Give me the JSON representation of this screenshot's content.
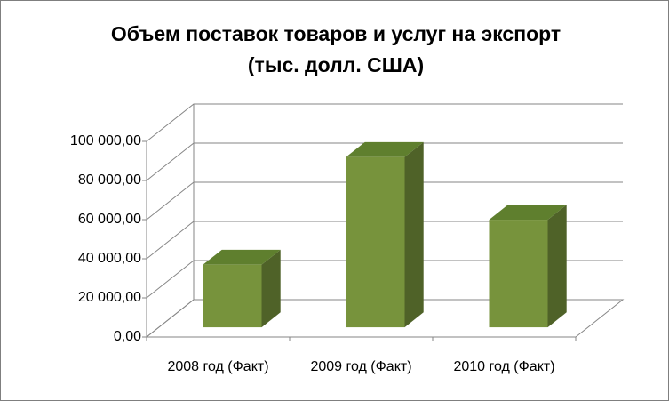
{
  "chart_data": {
    "type": "bar3d",
    "title": [
      "Объем поставок товаров и услуг на экспорт",
      "(тыс. долл. США)"
    ],
    "categories": [
      "2008 год (Факт)",
      "2009 год  (Факт)",
      "2010 год  (Факт)"
    ],
    "values": [
      32000,
      87000,
      55000
    ],
    "color": "#77933c",
    "ylim": [
      0,
      100000
    ],
    "yticks": [
      {
        "value": 0,
        "label": "0,00"
      },
      {
        "value": 20000,
        "label": "20 000,00"
      },
      {
        "value": 40000,
        "label": "40 000,00"
      },
      {
        "value": 60000,
        "label": "60 000,00"
      },
      {
        "value": 80000,
        "label": "80 000,00"
      },
      {
        "value": 100000,
        "label": "100 000,00"
      }
    ],
    "grid": true
  }
}
